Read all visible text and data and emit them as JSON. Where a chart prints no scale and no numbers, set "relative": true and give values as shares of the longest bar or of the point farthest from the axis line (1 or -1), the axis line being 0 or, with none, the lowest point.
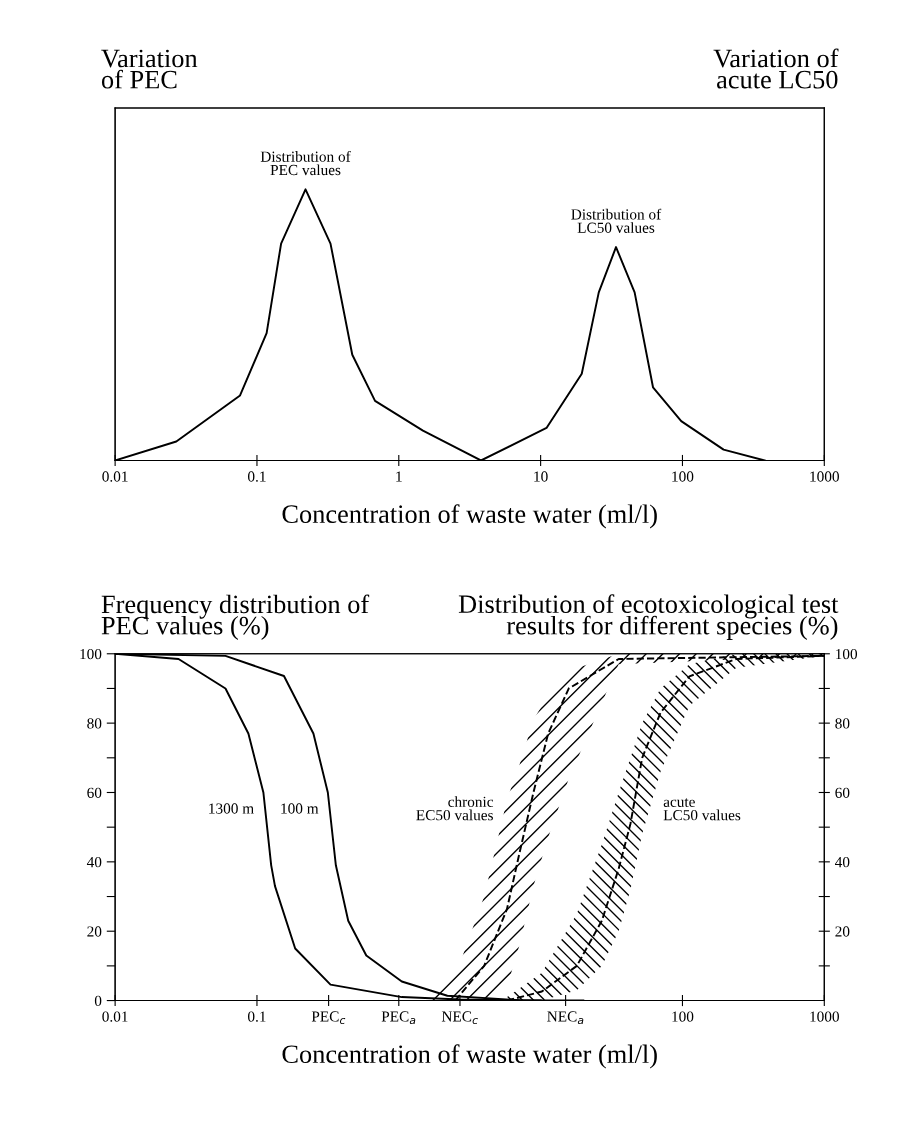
{
  "chart_data": [
    {
      "type": "line",
      "relative": true,
      "log": "x",
      "ylabel": "Variation\nof PEC",
      "y2label": "Variation of\nacute LC50",
      "xlabel": "Concentration of waste water (ml/l)",
      "xlim": [
        0.01,
        1000
      ],
      "xticks": [
        0.01,
        0.1,
        1,
        10,
        100,
        1000
      ],
      "tick_labels": "x",
      "grid": false,
      "legend": false,
      "marker": "none",
      "line_style": "solid",
      "series": [
        {
          "name": "Distribution of\nPEC values",
          "color": "#000000",
          "x": [
            0.01,
            0.027,
            0.076,
            0.117,
            0.148,
            0.22,
            0.33,
            0.47,
            0.68,
            1.48,
            3.8
          ],
          "values": [
            0,
            0.07,
            0.24,
            0.47,
            0.8,
            1.0,
            0.8,
            0.39,
            0.22,
            0.11,
            0
          ]
        },
        {
          "name": "Distribution of\nLC50 values",
          "color": "#000000",
          "x": [
            3.8,
            11,
            19.5,
            25.7,
            34,
            46,
            62,
            98,
            195,
            380
          ],
          "values": [
            0,
            0.12,
            0.32,
            0.62,
            0.787,
            0.62,
            0.27,
            0.145,
            0.04,
            0
          ]
        }
      ]
    },
    {
      "type": "line",
      "log": "x",
      "ylabel": "Frequency distribution of\nPEC values (%)",
      "y2label": "Distribution of ecotoxicological test\nresults for different species (%)",
      "xlabel": "Concentration of waste water (ml/l)",
      "xlim": [
        0.01,
        1000
      ],
      "ylim": [
        0,
        100
      ],
      "y2lim": [
        0,
        100
      ],
      "grid": false,
      "legend": false,
      "marker": "none",
      "xticks": [
        0.01,
        0.1,
        {
          "value": 0.32,
          "label": "PEC$_{c}$"
        },
        {
          "value": 1.0,
          "label": "PEC$_{a}$"
        },
        {
          "value": 2.7,
          "label": "NEC$_{c}$"
        },
        {
          "value": 15,
          "label": "NEC$_{a}$"
        },
        100,
        1000
      ],
      "yticks": [
        0,
        {
          "value": 10,
          "label": null
        },
        20,
        {
          "value": 30,
          "label": null
        },
        40,
        {
          "value": 50,
          "label": null
        },
        60,
        {
          "value": 70,
          "label": null
        },
        80,
        {
          "value": 90,
          "label": null
        },
        100
      ],
      "y2ticks": [
        {
          "value": 10,
          "label": null
        },
        20,
        {
          "value": 30,
          "label": null
        },
        40,
        {
          "value": 50,
          "label": null
        },
        60,
        {
          "value": 70,
          "label": null
        },
        80,
        {
          "value": 90,
          "label": null
        },
        100
      ],
      "series": [
        {
          "name": "100 m",
          "color": "#000000",
          "line_style": "solid",
          "x": [
            0.01,
            0.06,
            0.155,
            0.25,
            0.316,
            0.36,
            0.44,
            0.59,
            1.05,
            2.2,
            7.1,
            20
          ],
          "values": [
            100,
            99.4,
            93.6,
            77,
            60,
            39,
            23,
            13,
            5.5,
            1.4,
            0.1,
            0
          ]
        },
        {
          "name": "1300 m",
          "color": "#000000",
          "line_style": "solid",
          "x": [
            0.01,
            0.028,
            0.06,
            0.087,
            0.111,
            0.126,
            0.134,
            0.186,
            0.33,
            1.05,
            2.7,
            10
          ],
          "values": [
            100,
            98.5,
            90,
            77,
            60,
            39,
            33,
            15,
            4.6,
            1,
            0.3,
            0
          ]
        },
        {
          "name": "chronic\nEC50 values",
          "color": "#000000",
          "line_style": "dashed",
          "x": [
            1.5,
            2.5,
            4.0,
            5.8,
            7.1,
            8.9,
            11.3,
            15.8,
            35.5,
            1000
          ],
          "values": [
            null,
            0,
            10,
            26.5,
            42.6,
            60,
            77,
            90,
            98.5,
            99.4
          ],
          "lower": [
            0,
            0,
            0,
            4,
            16,
            33,
            47,
            64,
            97,
            99.4
          ],
          "upper": [
            0,
            7,
            30,
            58,
            68,
            81,
            88,
            95,
            100,
            100
          ]
        },
        {
          "name": "acute\nLC50 values",
          "color": "#000000",
          "line_style": "dashed",
          "x": [
            5.8,
            10.2,
            18,
            27,
            35.5,
            43,
            52,
            70,
            112,
            240,
            1000
          ],
          "values": [
            0,
            2.6,
            10,
            23,
            38,
            51,
            70,
            83,
            93.5,
            98.5,
            99.4
          ],
          "lower": [
            0,
            0,
            3,
            10,
            20,
            32,
            48,
            66,
            85,
            96,
            99.4
          ],
          "upper": [
            1,
            8,
            25,
            45,
            60,
            70,
            80,
            90,
            97,
            100,
            100
          ]
        }
      ]
    }
  ]
}
